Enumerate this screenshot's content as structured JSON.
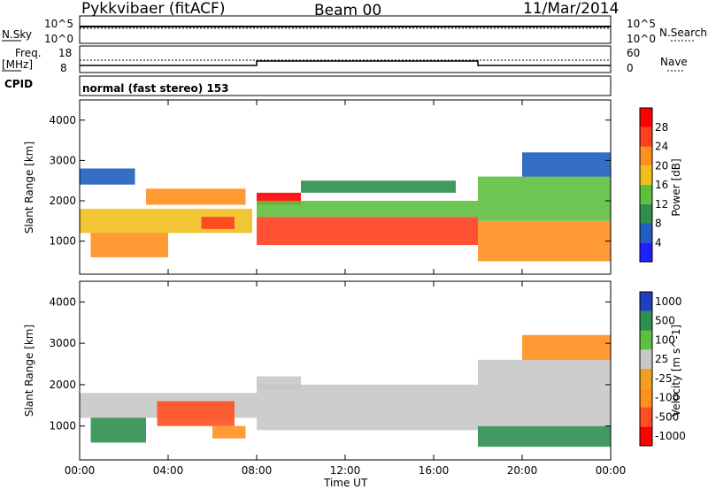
{
  "header": {
    "station": "Pykkvibaer (fitACF)",
    "beam": "Beam 00",
    "date": "11/Mar/2014"
  },
  "panels": {
    "nsky_label": "N.Sky",
    "nsky_ticks": [
      "10^5",
      "10^0"
    ],
    "nsearch_label": "N.Search",
    "nsearch_ticks": [
      "10^5",
      "10^0"
    ],
    "freq_label": "Freq.",
    "freq_unit": "[MHz]",
    "freq_ticks": [
      "18",
      "8"
    ],
    "nave_label": "Nave",
    "nave_ticks": [
      "60",
      "0"
    ],
    "cpid_label": "CPID",
    "cpid_value": "normal (fast stereo) 153"
  },
  "axes": {
    "ylabel": "Slant Range [km]",
    "xlabel": "Time UT"
  },
  "colors": {
    "power": [
      "#1f1fff",
      "#1f5fbf",
      "#2f8f4f",
      "#5fbf3f",
      "#efbf1f",
      "#ff8f1f",
      "#ff3f1f",
      "#ff0000"
    ],
    "velocity": [
      "#ff0000",
      "#ff4f1f",
      "#ff8f1f",
      "#efa020",
      "#c8c8c8",
      "#5fbf3f",
      "#2f8f4f",
      "#1f3fbf"
    ]
  },
  "chart_data": [
    {
      "type": "heatmap",
      "name": "power",
      "ylabel": "Slant Range [km]",
      "ylim": [
        180,
        4500
      ],
      "xlim": [
        "00:00",
        "24:00"
      ],
      "x_ticks": [
        "00:00",
        "04:00",
        "08:00",
        "12:00",
        "16:00",
        "20:00",
        "00:00"
      ],
      "y_ticks": [
        1000,
        2000,
        3000,
        4000
      ],
      "colorbar_label": "Power [dB]",
      "colorbar_ticks": [
        "4",
        "8",
        "12",
        "16",
        "20",
        "24",
        "28"
      ],
      "colorbar_range": [
        0,
        30
      ],
      "regions": [
        {
          "x0": 0.0,
          "x1": 7.8,
          "y0": 1200,
          "y1": 1800,
          "level": 18
        },
        {
          "x0": 0.5,
          "x1": 4.0,
          "y0": 600,
          "y1": 1200,
          "level": 22
        },
        {
          "x0": 0.0,
          "x1": 2.5,
          "y0": 2400,
          "y1": 2800,
          "level": 6
        },
        {
          "x0": 3.0,
          "x1": 7.5,
          "y0": 1900,
          "y1": 2300,
          "level": 20
        },
        {
          "x0": 5.5,
          "x1": 7.0,
          "y0": 1300,
          "y1": 1600,
          "level": 26
        },
        {
          "x0": 8.0,
          "x1": 10.0,
          "y0": 1900,
          "y1": 2200,
          "level": 28
        },
        {
          "x0": 8.0,
          "x1": 18.0,
          "y0": 900,
          "y1": 1600,
          "level": 24
        },
        {
          "x0": 8.0,
          "x1": 18.0,
          "y0": 1600,
          "y1": 2000,
          "level": 14
        },
        {
          "x0": 10.0,
          "x1": 17.0,
          "y0": 2200,
          "y1": 2500,
          "level": 10
        },
        {
          "x0": 18.0,
          "x1": 24.0,
          "y0": 500,
          "y1": 1500,
          "level": 22
        },
        {
          "x0": 18.0,
          "x1": 24.0,
          "y0": 1500,
          "y1": 2600,
          "level": 12
        },
        {
          "x0": 20.0,
          "x1": 24.0,
          "y0": 2600,
          "y1": 3200,
          "level": 6
        }
      ]
    },
    {
      "type": "heatmap",
      "name": "velocity",
      "ylabel": "Slant Range [km]",
      "ylim": [
        180,
        4500
      ],
      "xlim": [
        "00:00",
        "24:00"
      ],
      "x_ticks": [
        "00:00",
        "04:00",
        "08:00",
        "12:00",
        "16:00",
        "20:00",
        "00:00"
      ],
      "y_ticks": [
        1000,
        2000,
        3000,
        4000
      ],
      "colorbar_label": "Velocity [m s^-1]",
      "colorbar_ticks": [
        "1000",
        "500",
        "100",
        "25",
        "-25",
        "-100",
        "-500",
        "-1000"
      ],
      "regions": [
        {
          "x0": 0.0,
          "x1": 8.0,
          "y0": 1200,
          "y1": 1800,
          "level": 0
        },
        {
          "x0": 0.5,
          "x1": 3.0,
          "y0": 600,
          "y1": 1200,
          "level": 150
        },
        {
          "x0": 3.5,
          "x1": 7.0,
          "y0": 1000,
          "y1": 1600,
          "level": -150
        },
        {
          "x0": 6.0,
          "x1": 7.5,
          "y0": 700,
          "y1": 1000,
          "level": -60
        },
        {
          "x0": 8.0,
          "x1": 18.0,
          "y0": 900,
          "y1": 2000,
          "level": 0
        },
        {
          "x0": 8.0,
          "x1": 10.0,
          "y0": 1900,
          "y1": 2200,
          "level": 0
        },
        {
          "x0": 18.0,
          "x1": 24.0,
          "y0": 500,
          "y1": 1000,
          "level": 200
        },
        {
          "x0": 18.0,
          "x1": 24.0,
          "y0": 1000,
          "y1": 2600,
          "level": 0
        },
        {
          "x0": 20.0,
          "x1": 24.0,
          "y0": 2600,
          "y1": 3200,
          "level": -60
        }
      ]
    }
  ]
}
